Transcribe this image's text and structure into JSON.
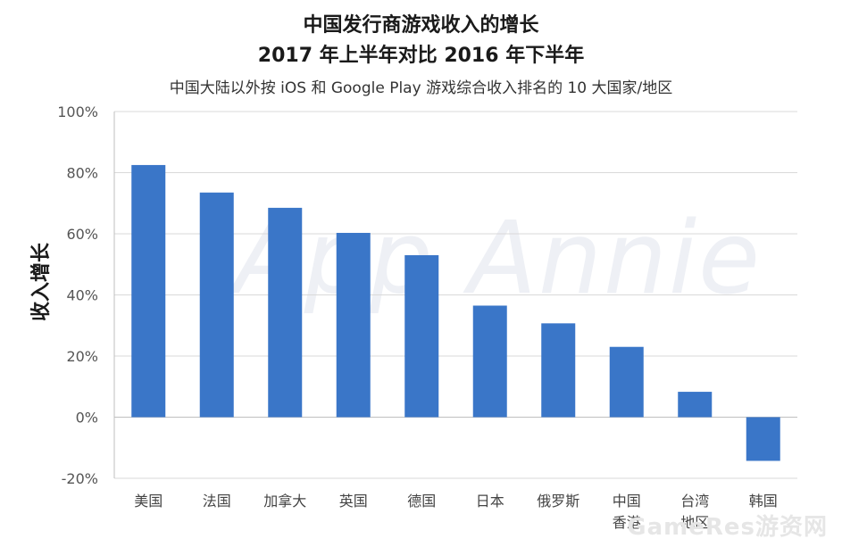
{
  "chart_data": {
    "type": "bar",
    "title_line1": "中国发行商游戏收入的增长",
    "title_line2": "2017 年上半年对比 2016 年下半年",
    "subtitle": "中国大陆以外按 iOS 和 Google Play 游戏综合收入排名的 10 大国家/地区",
    "ylabel": "收入增长",
    "xlabel": "",
    "categories": [
      [
        "美国"
      ],
      [
        "法国"
      ],
      [
        "加拿大"
      ],
      [
        "英国"
      ],
      [
        "德国"
      ],
      [
        "日本"
      ],
      [
        "俄罗斯"
      ],
      [
        "中国",
        "香港"
      ],
      [
        "台湾",
        "地区"
      ],
      [
        "韩国"
      ]
    ],
    "values": [
      82.5,
      73.5,
      68.5,
      60.3,
      53.0,
      36.5,
      30.7,
      23.0,
      8.3,
      -14.3
    ],
    "ylim": [
      -20,
      100
    ],
    "yticks": [
      -20,
      0,
      20,
      40,
      60,
      80,
      100
    ],
    "ytick_labels": [
      "-20%",
      "0%",
      "20%",
      "40%",
      "60%",
      "80%",
      "100%"
    ],
    "grid": true,
    "bar_color": "#3a76c8",
    "grid_color": "#d9d9d9",
    "watermark": "App Annie",
    "corner_watermark": "GameRes游资网"
  }
}
